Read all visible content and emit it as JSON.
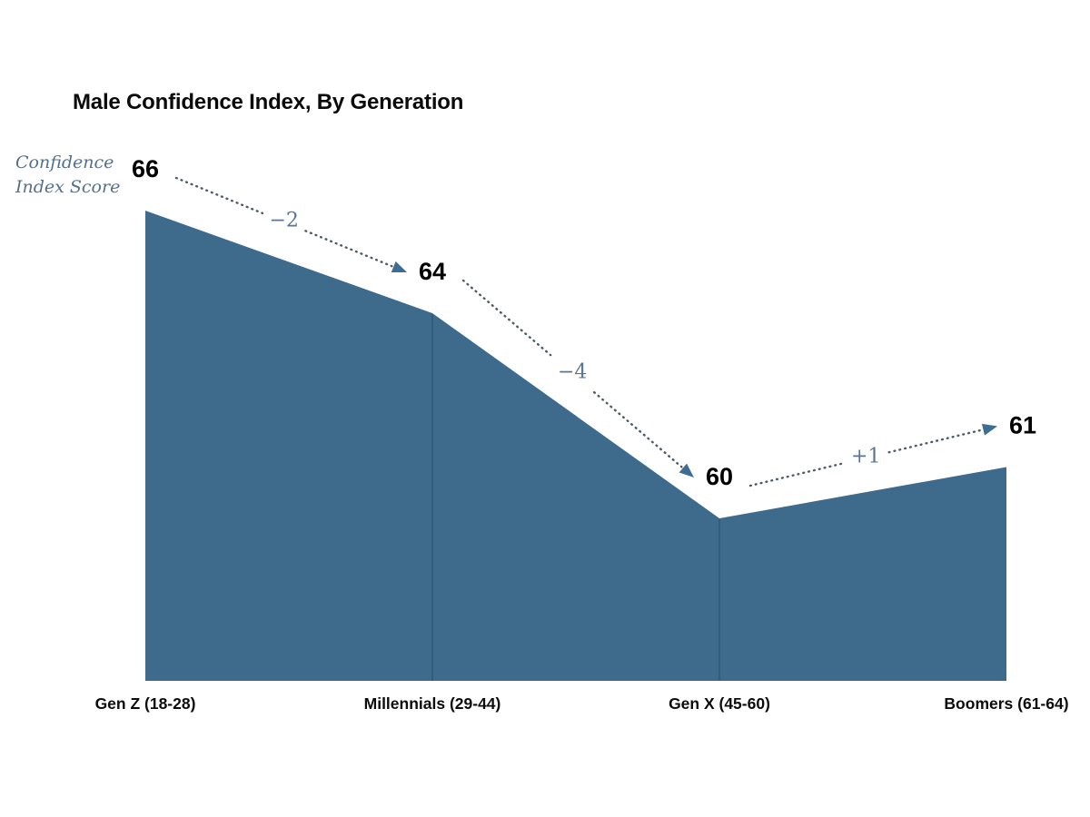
{
  "page": {
    "background": "#ffffff"
  },
  "header": {
    "title": "Male Confidence Index, By Generation"
  },
  "y_axis": {
    "label_line1": "Confidence",
    "label_line2": "Index Score"
  },
  "chart_data": {
    "type": "area",
    "title": "Male Confidence Index, By Generation",
    "ylabel": "Confidence Index Score",
    "xlabel": "",
    "categories": [
      "Gen Z (18-28)",
      "Millennials (29-44)",
      "Gen X (45-60)",
      "Boomers (61-64)"
    ],
    "values": [
      66,
      64,
      60,
      61
    ],
    "deltas": [
      "−2",
      "−4",
      "+1"
    ],
    "value_range_shown": [
      60,
      66
    ],
    "grid": false,
    "legend_position": "none",
    "annotations": "dotted arrows between consecutive value labels showing change",
    "colors": {
      "area_fill": "#3e6b8c",
      "segment_divider": "#2e5674",
      "arrow_dots": "#4d5a68",
      "arrow_head": "#3e6d93",
      "delta_text": "#5b7590",
      "value_text": "#000000",
      "category_text": "#0c0c0c",
      "ylabel_text": "#54718c",
      "title_text": "#0b0b0b"
    }
  }
}
